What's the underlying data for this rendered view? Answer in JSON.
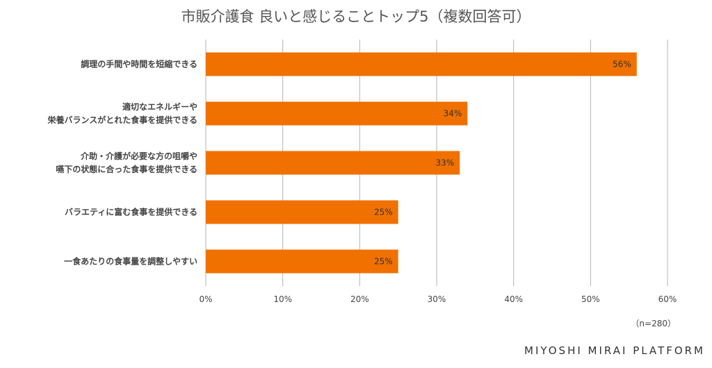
{
  "chart_data": {
    "type": "bar",
    "orientation": "horizontal",
    "title": "市販介護食 良いと感じることトップ5（複数回答可）",
    "categories": [
      [
        "調理の手間や時間を短縮できる"
      ],
      [
        "適切なエネルギーや",
        "栄養バランスがとれた食事を提供できる"
      ],
      [
        "介助・介護が必要な方の咀嚼や",
        "嚥下の状態に合った食事を提供できる"
      ],
      [
        "バラエティに富む食事を提供できる"
      ],
      [
        "一食あたりの食事量を調整しやすい"
      ]
    ],
    "values": [
      56,
      34,
      33,
      25,
      25
    ],
    "data_labels": [
      "56%",
      "34%",
      "33%",
      "25%",
      "25%"
    ],
    "xlim": [
      0,
      60
    ],
    "xticks": [
      0,
      10,
      20,
      30,
      40,
      50,
      60
    ],
    "xtick_labels": [
      "0%",
      "10%",
      "20%",
      "30%",
      "40%",
      "50%",
      "60%"
    ],
    "grid": true,
    "bar_color": "#f07000",
    "grid_color": "#b3b3b3"
  },
  "sample_size": "（n=280）",
  "brand": "MIYOSHI MIRAI PLATFORM"
}
